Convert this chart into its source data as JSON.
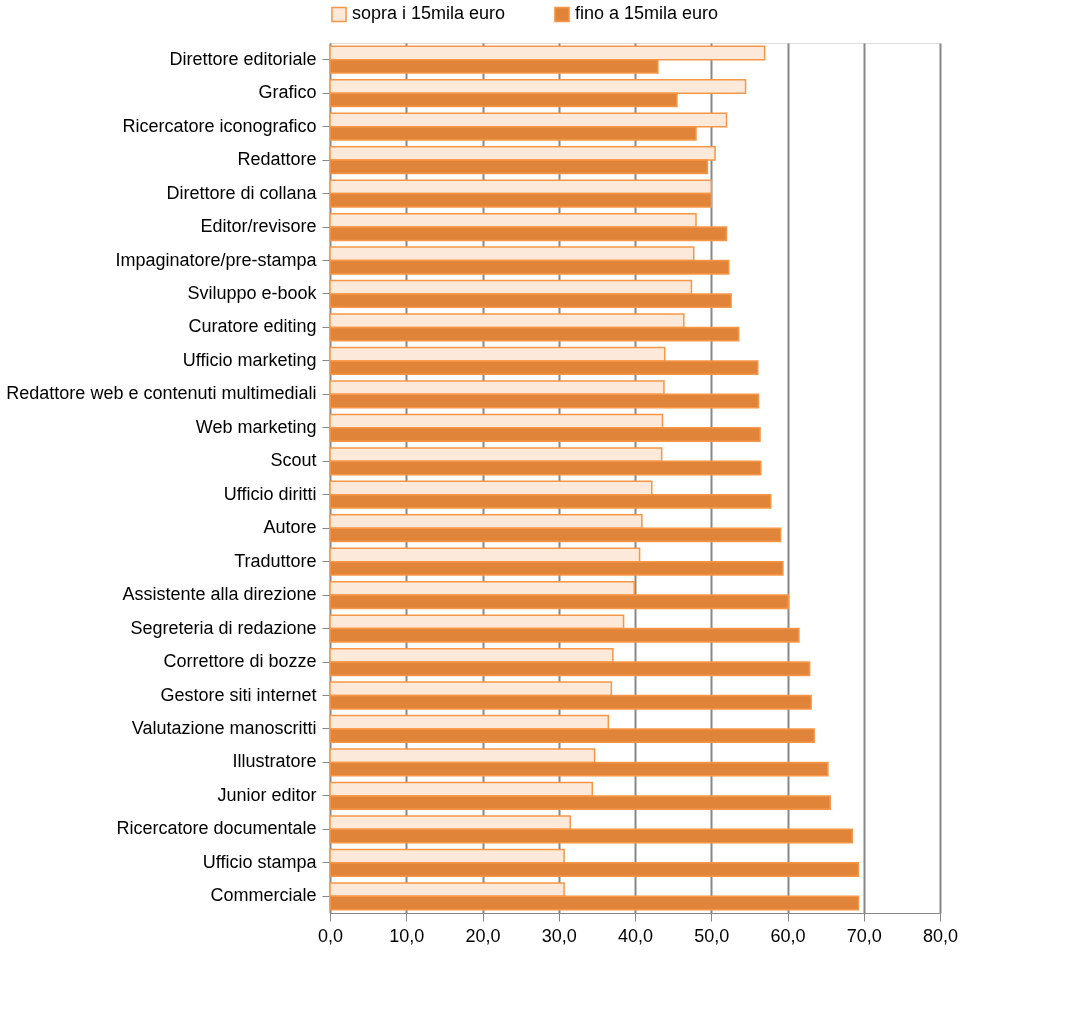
{
  "chart_data": {
    "type": "bar",
    "orientation": "horizontal",
    "categories": [
      "Direttore editoriale",
      "Grafico",
      "Ricercatore iconografico",
      "Redattore",
      "Direttore di collana",
      "Editor/revisore",
      "Impaginatore/pre-stampa",
      "Sviluppo e-book",
      "Curatore editing",
      "Ufficio marketing",
      "Redattore web e contenuti multimediali",
      "Web marketing",
      "Scout",
      "Ufficio diritti",
      "Autore",
      "Traduttore",
      "Assistente alla direzione",
      "Segreteria di redazione",
      "Correttore di bozze",
      "Gestore siti internet",
      "Valutazione manoscritti",
      "Illustratore",
      "Junior editor",
      "Ricercatore documentale",
      "Ufficio stampa",
      "Commerciale"
    ],
    "series": [
      {
        "name": "sopra i  15mila euro",
        "color": "#fde9d9",
        "values": [
          57.0,
          54.5,
          52.0,
          50.5,
          50.0,
          48.0,
          47.7,
          47.4,
          46.4,
          43.9,
          43.8,
          43.6,
          43.5,
          42.2,
          40.9,
          40.6,
          39.9,
          38.5,
          37.1,
          36.9,
          36.5,
          34.7,
          34.4,
          31.5,
          30.7,
          30.7
        ]
      },
      {
        "name": "fino a 15mila euro",
        "color": "#e0843a",
        "values": [
          43.0,
          45.5,
          48.0,
          49.5,
          50.0,
          52.0,
          52.3,
          52.6,
          53.6,
          56.1,
          56.2,
          56.4,
          56.5,
          57.8,
          59.1,
          59.4,
          60.1,
          61.5,
          62.9,
          63.1,
          63.5,
          65.3,
          65.6,
          68.5,
          69.3,
          69.3
        ]
      }
    ],
    "xlim": [
      0,
      80
    ],
    "xticks": [
      {
        "value": 0,
        "label": "0,0"
      },
      {
        "value": 10,
        "label": "10,0"
      },
      {
        "value": 20,
        "label": "20,0"
      },
      {
        "value": 30,
        "label": "30,0"
      },
      {
        "value": 40,
        "label": "40,0"
      },
      {
        "value": 50,
        "label": "50,0"
      },
      {
        "value": 60,
        "label": "60,0"
      },
      {
        "value": 70,
        "label": "70,0"
      },
      {
        "value": 80,
        "label": "80,0"
      }
    ],
    "grid": "x",
    "legend": "top"
  }
}
